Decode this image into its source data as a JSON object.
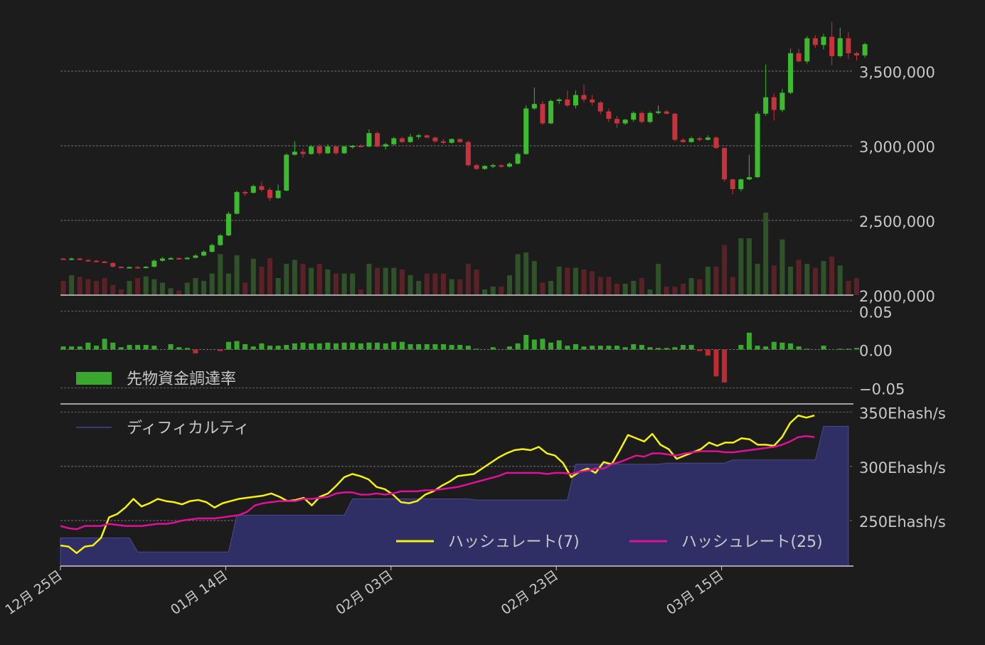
{
  "colors": {
    "background": "#1c1c1c",
    "grid": "#8a8a8a",
    "axis": "#cfcfcf",
    "text": "#c8c8c8",
    "up": "#3dbb2e",
    "down": "#c8323a",
    "up_volume": "#2f5228",
    "down_volume": "#5a2227",
    "funding_up": "#3aa82f",
    "funding_down": "#c02a33",
    "difficulty_fill": "#2f2f66",
    "difficulty_line": "#4a4a8a",
    "hash7": "#f5f20f",
    "hash25": "#e0109a"
  },
  "chart_data": [
    {
      "type": "candlestick",
      "panel": "price",
      "ylim": [
        2000000,
        3900000
      ],
      "yticks": [
        "3,500,000",
        "3,000,000",
        "2,500,000",
        "2,000,000"
      ],
      "ytick_values": [
        3500000,
        3000000,
        2500000,
        2000000
      ],
      "grid": true,
      "xticks": [
        "12月 25日",
        "01月 14日",
        "02月 03日",
        "02月 23日",
        "03月 15日"
      ],
      "xtick_indices": [
        0,
        20,
        40,
        60,
        80
      ],
      "ohlc": [
        [
          2245000,
          2250000,
          2238000,
          2240000
        ],
        [
          2240000,
          2250000,
          2235000,
          2245000
        ],
        [
          2245000,
          2250000,
          2235000,
          2235000
        ],
        [
          2235000,
          2240000,
          2225000,
          2230000
        ],
        [
          2230000,
          2235000,
          2225000,
          2225000
        ],
        [
          2225000,
          2230000,
          2215000,
          2215000
        ],
        [
          2215000,
          2220000,
          2185000,
          2190000
        ],
        [
          2190000,
          2195000,
          2180000,
          2185000
        ],
        [
          2185000,
          2190000,
          2178000,
          2188000
        ],
        [
          2188000,
          2195000,
          2180000,
          2185000
        ],
        [
          2185000,
          2195000,
          2182000,
          2190000
        ],
        [
          2190000,
          2240000,
          2185000,
          2230000
        ],
        [
          2230000,
          2255000,
          2225000,
          2245000
        ],
        [
          2245000,
          2255000,
          2240000,
          2248000
        ],
        [
          2248000,
          2252000,
          2240000,
          2245000
        ],
        [
          2245000,
          2255000,
          2240000,
          2250000
        ],
        [
          2250000,
          2275000,
          2245000,
          2265000
        ],
        [
          2265000,
          2300000,
          2260000,
          2290000
        ],
        [
          2290000,
          2345000,
          2285000,
          2335000
        ],
        [
          2335000,
          2410000,
          2330000,
          2400000
        ],
        [
          2400000,
          2560000,
          2395000,
          2545000
        ],
        [
          2545000,
          2700000,
          2540000,
          2690000
        ],
        [
          2690000,
          2700000,
          2665000,
          2685000
        ],
        [
          2685000,
          2740000,
          2680000,
          2730000
        ],
        [
          2730000,
          2760000,
          2695000,
          2705000
        ],
        [
          2705000,
          2720000,
          2630000,
          2650000
        ],
        [
          2650000,
          2740000,
          2645000,
          2700000
        ],
        [
          2700000,
          2950000,
          2695000,
          2940000
        ],
        [
          2940000,
          3030000,
          2935000,
          2960000
        ],
        [
          2960000,
          2980000,
          2920000,
          2945000
        ],
        [
          2945000,
          3005000,
          2940000,
          2995000
        ],
        [
          2995000,
          3010000,
          2940000,
          2950000
        ],
        [
          2950000,
          3010000,
          2945000,
          2995000
        ],
        [
          2995000,
          3000000,
          2940000,
          2950000
        ],
        [
          2950000,
          3000000,
          2945000,
          2995000
        ],
        [
          2995000,
          3005000,
          2980000,
          3000000
        ],
        [
          3000000,
          3010000,
          2990000,
          2995000
        ],
        [
          2995000,
          3110000,
          2990000,
          3085000
        ],
        [
          3085000,
          3095000,
          2990000,
          2995000
        ],
        [
          2995000,
          3020000,
          2975000,
          3010000
        ],
        [
          3010000,
          3060000,
          3000000,
          3050000
        ],
        [
          3050000,
          3060000,
          3020000,
          3025000
        ],
        [
          3025000,
          3080000,
          3020000,
          3060000
        ],
        [
          3060000,
          3080000,
          3045000,
          3070000
        ],
        [
          3070000,
          3075000,
          3050000,
          3055000
        ],
        [
          3055000,
          3060000,
          3020000,
          3030000
        ],
        [
          3030000,
          3045000,
          3010000,
          3020000
        ],
        [
          3020000,
          3050000,
          3015000,
          3045000
        ],
        [
          3045000,
          3050000,
          3020000,
          3025000
        ],
        [
          3025000,
          3035000,
          2860000,
          2870000
        ],
        [
          2870000,
          2880000,
          2840000,
          2845000
        ],
        [
          2845000,
          2870000,
          2840000,
          2865000
        ],
        [
          2865000,
          2880000,
          2850000,
          2870000
        ],
        [
          2870000,
          2875000,
          2850000,
          2860000
        ],
        [
          2860000,
          2890000,
          2855000,
          2880000
        ],
        [
          2880000,
          2955000,
          2875000,
          2945000
        ],
        [
          2945000,
          3270000,
          2940000,
          3250000
        ],
        [
          3250000,
          3390000,
          3240000,
          3280000
        ],
        [
          3280000,
          3300000,
          3140000,
          3150000
        ],
        [
          3150000,
          3310000,
          3145000,
          3300000
        ],
        [
          3300000,
          3320000,
          3280000,
          3310000
        ],
        [
          3310000,
          3370000,
          3260000,
          3270000
        ],
        [
          3270000,
          3370000,
          3250000,
          3340000
        ],
        [
          3340000,
          3410000,
          3290000,
          3310000
        ],
        [
          3310000,
          3340000,
          3270000,
          3290000
        ],
        [
          3290000,
          3300000,
          3210000,
          3230000
        ],
        [
          3230000,
          3250000,
          3160000,
          3180000
        ],
        [
          3180000,
          3200000,
          3120000,
          3150000
        ],
        [
          3150000,
          3180000,
          3140000,
          3175000
        ],
        [
          3175000,
          3230000,
          3160000,
          3220000
        ],
        [
          3220000,
          3230000,
          3150000,
          3160000
        ],
        [
          3160000,
          3230000,
          3150000,
          3220000
        ],
        [
          3220000,
          3270000,
          3210000,
          3230000
        ],
        [
          3230000,
          3240000,
          3210000,
          3215000
        ],
        [
          3215000,
          3220000,
          3030000,
          3040000
        ],
        [
          3040000,
          3050000,
          3020000,
          3025000
        ],
        [
          3025000,
          3060000,
          3020000,
          3050000
        ],
        [
          3050000,
          3060000,
          3030000,
          3040000
        ],
        [
          3040000,
          3070000,
          3035000,
          3055000
        ],
        [
          3055000,
          3065000,
          2980000,
          2985000
        ],
        [
          2985000,
          2990000,
          2760000,
          2775000
        ],
        [
          2775000,
          2780000,
          2675000,
          2710000
        ],
        [
          2710000,
          2780000,
          2695000,
          2775000
        ],
        [
          2775000,
          2940000,
          2770000,
          2790000
        ],
        [
          2790000,
          3230000,
          2785000,
          3215000
        ],
        [
          3215000,
          3545000,
          3200000,
          3325000
        ],
        [
          3325000,
          3350000,
          3170000,
          3240000
        ],
        [
          3240000,
          3380000,
          3225000,
          3355000
        ],
        [
          3355000,
          3650000,
          3345000,
          3620000
        ],
        [
          3620000,
          3650000,
          3560000,
          3565000
        ],
        [
          3565000,
          3735000,
          3550000,
          3720000
        ],
        [
          3720000,
          3740000,
          3655000,
          3675000
        ],
        [
          3675000,
          3750000,
          3645000,
          3730000
        ],
        [
          3730000,
          3830000,
          3540000,
          3600000
        ],
        [
          3600000,
          3790000,
          3590000,
          3720000
        ],
        [
          3720000,
          3760000,
          3580000,
          3620000
        ],
        [
          3620000,
          3630000,
          3570000,
          3605000
        ],
        [
          3605000,
          3690000,
          3590000,
          3680000
        ]
      ],
      "volume_series_name": "",
      "volume_relative": [
        0.25,
        0.35,
        0.32,
        0.28,
        0.25,
        0.3,
        0.18,
        0.1,
        0.25,
        0.3,
        0.33,
        0.28,
        0.22,
        0.12,
        0.08,
        0.22,
        0.3,
        0.25,
        0.38,
        0.72,
        0.38,
        0.7,
        0.22,
        0.64,
        0.5,
        0.65,
        0.3,
        0.55,
        0.62,
        0.55,
        0.48,
        0.55,
        0.45,
        0.38,
        0.38,
        0.38,
        0.1,
        0.55,
        0.48,
        0.48,
        0.48,
        0.45,
        0.35,
        0.25,
        0.38,
        0.38,
        0.38,
        0.28,
        0.28,
        0.55,
        0.45,
        0.1,
        0.15,
        0.15,
        0.35,
        0.72,
        0.75,
        0.6,
        0.22,
        0.25,
        0.5,
        0.48,
        0.48,
        0.45,
        0.42,
        0.32,
        0.32,
        0.2,
        0.2,
        0.25,
        0.3,
        0.1,
        0.55,
        0.15,
        0.15,
        0.2,
        0.3,
        0.28,
        0.5,
        0.5,
        0.88,
        0.32,
        1.0,
        1.0,
        0.55,
        1.45,
        0.52,
        0.98,
        0.5,
        0.62,
        0.55,
        0.48,
        0.6,
        0.68,
        0.52,
        0.25,
        0.3
      ]
    },
    {
      "type": "bar",
      "panel": "funding",
      "legend": "先物資金調達率",
      "ylim": [
        -0.07,
        0.07
      ],
      "yticks": [
        "0.05",
        "0.00",
        "−0.05"
      ],
      "ytick_values": [
        0.05,
        0.0,
        -0.05
      ],
      "values": [
        0.004,
        0.004,
        0.004,
        0.009,
        0.005,
        0.014,
        0.009,
        0.003,
        0.006,
        0.006,
        0.006,
        0.005,
        0.0,
        0.007,
        0.003,
        0.002,
        -0.005,
        0.0,
        0.0,
        -0.002,
        0.01,
        0.011,
        0.007,
        0.004,
        0.008,
        0.005,
        0.005,
        0.006,
        0.008,
        0.009,
        0.008,
        0.008,
        0.009,
        0.008,
        0.009,
        0.009,
        0.008,
        0.009,
        0.009,
        0.008,
        0.01,
        0.01,
        0.007,
        0.007,
        0.007,
        0.007,
        0.007,
        0.006,
        0.006,
        0.005,
        0.001,
        0.0,
        0.003,
        0.0,
        0.004,
        0.008,
        0.019,
        0.013,
        0.014,
        0.009,
        0.012,
        0.005,
        0.007,
        0.004,
        0.005,
        0.005,
        0.005,
        0.005,
        0.003,
        0.007,
        0.006,
        0.003,
        0.002,
        0.002,
        0.003,
        0.006,
        0.006,
        -0.002,
        -0.008,
        -0.035,
        -0.043,
        0.0,
        0.006,
        0.022,
        0.005,
        0.004,
        0.01,
        0.009,
        0.008,
        0.004,
        0.001,
        0.0,
        0.005,
        0.0,
        0.001,
        0.001,
        0.002
      ]
    },
    {
      "type": "area_line",
      "panel": "hashrate",
      "ylim": [
        208,
        357
      ],
      "yticks": [
        "350Ehash/s",
        "300Ehash/s",
        "250Ehash/s"
      ],
      "ytick_values": [
        350,
        300,
        250
      ],
      "difficulty_legend": "ディフィカルティ",
      "difficulty": [
        [
          0,
          234
        ],
        [
          8,
          234
        ],
        [
          9,
          221
        ],
        [
          20,
          221
        ],
        [
          21,
          255
        ],
        [
          34,
          255
        ],
        [
          35,
          270
        ],
        [
          49,
          270
        ],
        [
          50,
          269
        ],
        [
          61,
          269
        ],
        [
          62,
          302
        ],
        [
          72,
          302
        ],
        [
          73,
          303
        ],
        [
          80,
          303
        ],
        [
          81,
          306
        ],
        [
          87,
          306
        ],
        [
          88,
          306
        ],
        [
          89,
          306
        ],
        [
          90,
          306
        ],
        [
          91,
          306
        ],
        [
          92,
          337
        ],
        [
          95,
          337
        ]
      ],
      "series": [
        {
          "name": "ハッシュレート(7)",
          "values": [
            227,
            226,
            220,
            226,
            227,
            234,
            253,
            256,
            262,
            270,
            263,
            266,
            270,
            268,
            267,
            265,
            268,
            269,
            267,
            262,
            266,
            268,
            270,
            271,
            272,
            273,
            275,
            272,
            268,
            269,
            271,
            264,
            272,
            275,
            282,
            290,
            293,
            291,
            288,
            281,
            279,
            274,
            267,
            266,
            268,
            274,
            277,
            282,
            286,
            291,
            292,
            293,
            298,
            303,
            308,
            312,
            315,
            316,
            315,
            318,
            312,
            310,
            303,
            290,
            295,
            298,
            294,
            304,
            302,
            315,
            329,
            326,
            323,
            330,
            320,
            316,
            307,
            310,
            313,
            316,
            322,
            319,
            322,
            322,
            326,
            325,
            320,
            320,
            319,
            327,
            340,
            347,
            345,
            347
          ]
        },
        {
          "name": "ハッシュレート(25)",
          "values": [
            245,
            243,
            242,
            245,
            245,
            245,
            247,
            246,
            245,
            245,
            245,
            246,
            247,
            247,
            248,
            250,
            251,
            252,
            252,
            252,
            253,
            254,
            255,
            258,
            264,
            266,
            267,
            268,
            268,
            268,
            270,
            270,
            271,
            272,
            275,
            276,
            276,
            274,
            274,
            275,
            274,
            275,
            277,
            277,
            277,
            278,
            278,
            279,
            280,
            281,
            283,
            285,
            287,
            289,
            291,
            294,
            294,
            294,
            294,
            294,
            293,
            294,
            294,
            293,
            295,
            296,
            298,
            298,
            302,
            304,
            307,
            310,
            309,
            312,
            312,
            311,
            310,
            312,
            313,
            314,
            314,
            314,
            313,
            313,
            314,
            315,
            316,
            317,
            318,
            320,
            323,
            327,
            328,
            327
          ]
        }
      ]
    }
  ]
}
